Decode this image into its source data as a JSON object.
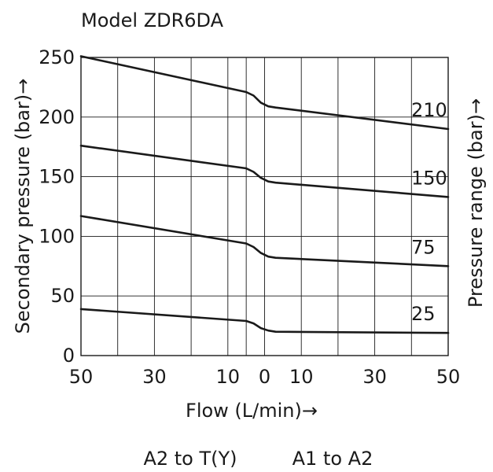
{
  "chart_data": {
    "type": "line",
    "title": "Model ZDR6DA",
    "xlabel": "Flow (L/min)→",
    "ylabel": "Secondary pressure (bar)→",
    "y2label": "Pressure range (bar)→",
    "sections": [
      "A2 to T(Y)",
      "A1 to A2"
    ],
    "x_ticks": [
      {
        "pos": -50,
        "label": "50"
      },
      {
        "pos": -30,
        "label": "30"
      },
      {
        "pos": -10,
        "label": "10"
      },
      {
        "pos": 0,
        "label": "0"
      },
      {
        "pos": 10,
        "label": "10"
      },
      {
        "pos": 30,
        "label": "30"
      },
      {
        "pos": 50,
        "label": "50"
      }
    ],
    "y_ticks": [
      0,
      50,
      100,
      150,
      200,
      250
    ],
    "xlim": [
      -50,
      50
    ],
    "ylim": [
      0,
      250
    ],
    "grid": true,
    "vgrid_positions": [
      -50,
      -40,
      -30,
      -20,
      -10,
      -5,
      0,
      10,
      20,
      30,
      40,
      50
    ],
    "series": [
      {
        "name": "210",
        "x": [
          -50,
          -5,
          -3,
          -1,
          1,
          3,
          50
        ],
        "y": [
          251,
          221,
          218,
          212,
          209,
          208,
          190
        ]
      },
      {
        "name": "150",
        "x": [
          -50,
          -5,
          -3,
          -1,
          1,
          3,
          50
        ],
        "y": [
          176,
          157,
          154,
          149,
          146,
          145,
          133
        ]
      },
      {
        "name": "75",
        "x": [
          -50,
          -5,
          -3,
          -1,
          1,
          3,
          50
        ],
        "y": [
          117,
          94,
          91,
          86,
          83,
          82,
          75
        ]
      },
      {
        "name": "25",
        "x": [
          -50,
          -5,
          -3,
          -1,
          1,
          3,
          50
        ],
        "y": [
          39,
          29,
          27,
          23,
          21,
          20,
          19
        ]
      }
    ]
  }
}
